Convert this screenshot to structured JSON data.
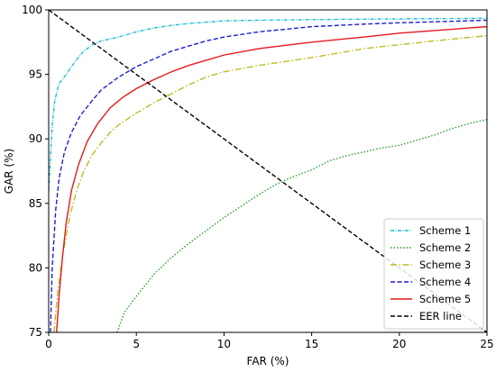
{
  "chart_data": {
    "type": "line",
    "title": "",
    "xlabel": "FAR (%)",
    "ylabel": "GAR (%)",
    "xlim": [
      0,
      25
    ],
    "ylim": [
      75,
      100
    ],
    "xticks": [
      0,
      5,
      10,
      15,
      20,
      25
    ],
    "yticks": [
      75,
      80,
      85,
      90,
      95,
      100
    ],
    "grid": false,
    "legend_position": "bottom-right",
    "series": [
      {
        "name": "Scheme 1",
        "color": "#17becf",
        "style": "dashdot-dense",
        "points": [
          [
            0,
            86.0
          ],
          [
            0.1,
            88.5
          ],
          [
            0.2,
            91.0
          ],
          [
            0.35,
            93.0
          ],
          [
            0.6,
            94.3
          ],
          [
            1.0,
            95.0
          ],
          [
            1.5,
            96.0
          ],
          [
            2.0,
            96.8
          ],
          [
            2.5,
            97.3
          ],
          [
            3.0,
            97.6
          ],
          [
            4.0,
            97.9
          ],
          [
            5.0,
            98.3
          ],
          [
            6.0,
            98.6
          ],
          [
            7.0,
            98.8
          ],
          [
            8.0,
            98.95
          ],
          [
            9.0,
            99.05
          ],
          [
            10.0,
            99.15
          ],
          [
            12.0,
            99.2
          ],
          [
            15.0,
            99.25
          ],
          [
            20.0,
            99.3
          ],
          [
            25.0,
            99.35
          ]
        ]
      },
      {
        "name": "Scheme 2",
        "color": "#2ca02c",
        "style": "dotted",
        "points": [
          [
            3.9,
            75.0
          ],
          [
            4.3,
            76.5
          ],
          [
            5.0,
            77.8
          ],
          [
            6.0,
            79.5
          ],
          [
            7.0,
            80.8
          ],
          [
            8.0,
            81.9
          ],
          [
            9.0,
            82.9
          ],
          [
            10.0,
            83.9
          ],
          [
            11.0,
            84.8
          ],
          [
            12.0,
            85.7
          ],
          [
            13.0,
            86.5
          ],
          [
            14.0,
            87.1
          ],
          [
            15.0,
            87.6
          ],
          [
            16.0,
            88.3
          ],
          [
            17.0,
            88.7
          ],
          [
            18.0,
            89.0
          ],
          [
            19.0,
            89.3
          ],
          [
            20.0,
            89.5
          ],
          [
            21.0,
            89.9
          ],
          [
            22.0,
            90.3
          ],
          [
            23.0,
            90.8
          ],
          [
            24.0,
            91.2
          ],
          [
            25.0,
            91.5
          ]
        ]
      },
      {
        "name": "Scheme 3",
        "color": "#bcbd22",
        "style": "dashdot",
        "points": [
          [
            0.3,
            75.0
          ],
          [
            0.5,
            78.0
          ],
          [
            0.8,
            81.0
          ],
          [
            1.2,
            84.0
          ],
          [
            1.6,
            86.0
          ],
          [
            2.0,
            87.5
          ],
          [
            2.5,
            88.8
          ],
          [
            3.0,
            89.7
          ],
          [
            3.5,
            90.5
          ],
          [
            4.0,
            91.1
          ],
          [
            5.0,
            92.0
          ],
          [
            6.0,
            92.8
          ],
          [
            7.0,
            93.5
          ],
          [
            8.0,
            94.2
          ],
          [
            9.0,
            94.8
          ],
          [
            10.0,
            95.2
          ],
          [
            12.0,
            95.7
          ],
          [
            15.0,
            96.3
          ],
          [
            18.0,
            97.0
          ],
          [
            20.0,
            97.3
          ],
          [
            22.0,
            97.6
          ],
          [
            25.0,
            98.0
          ]
        ]
      },
      {
        "name": "Scheme 4",
        "color": "#1f1fcf",
        "style": "dashed",
        "points": [
          [
            0.1,
            75.0
          ],
          [
            0.2,
            80.0
          ],
          [
            0.4,
            84.5
          ],
          [
            0.6,
            87.0
          ],
          [
            0.9,
            89.0
          ],
          [
            1.3,
            90.5
          ],
          [
            1.8,
            91.8
          ],
          [
            2.5,
            93.0
          ],
          [
            3.0,
            93.8
          ],
          [
            4.0,
            94.8
          ],
          [
            5.0,
            95.6
          ],
          [
            6.0,
            96.2
          ],
          [
            7.0,
            96.8
          ],
          [
            8.0,
            97.2
          ],
          [
            9.0,
            97.6
          ],
          [
            10.0,
            97.9
          ],
          [
            12.0,
            98.3
          ],
          [
            15.0,
            98.7
          ],
          [
            18.0,
            98.9
          ],
          [
            20.0,
            99.0
          ],
          [
            25.0,
            99.2
          ]
        ]
      },
      {
        "name": "Scheme 5",
        "color": "#e31a1c",
        "style": "solid",
        "points": [
          [
            0.45,
            75.0
          ],
          [
            0.6,
            78.0
          ],
          [
            0.8,
            81.0
          ],
          [
            1.0,
            83.5
          ],
          [
            1.3,
            86.0
          ],
          [
            1.7,
            88.0
          ],
          [
            2.2,
            89.8
          ],
          [
            2.8,
            91.2
          ],
          [
            3.5,
            92.4
          ],
          [
            4.2,
            93.2
          ],
          [
            5.0,
            93.9
          ],
          [
            6.0,
            94.6
          ],
          [
            7.0,
            95.2
          ],
          [
            8.0,
            95.7
          ],
          [
            9.0,
            96.1
          ],
          [
            10.0,
            96.5
          ],
          [
            12.0,
            97.0
          ],
          [
            15.0,
            97.5
          ],
          [
            18.0,
            97.9
          ],
          [
            20.0,
            98.2
          ],
          [
            22.0,
            98.4
          ],
          [
            25.0,
            98.7
          ]
        ]
      },
      {
        "name": "EER line",
        "color": "#000000",
        "style": "dashed",
        "points": [
          [
            0,
            100
          ],
          [
            25,
            75
          ]
        ]
      }
    ]
  }
}
